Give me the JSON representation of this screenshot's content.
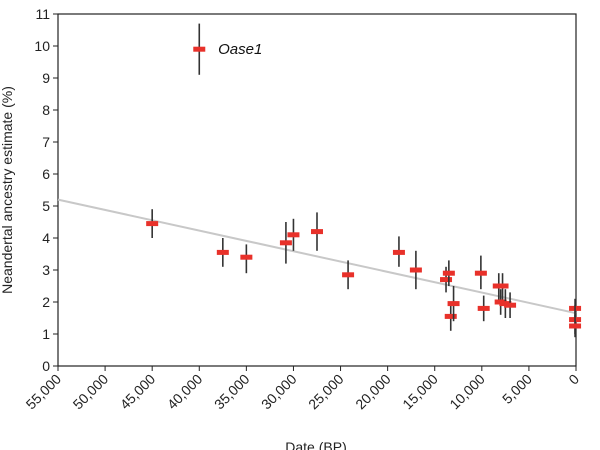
{
  "chart_data": {
    "type": "scatter",
    "xlabel": "Date (BP)",
    "ylabel": "Neandertal ancestry estimate (%)",
    "xlim": [
      55000,
      0
    ],
    "ylim": [
      0,
      11
    ],
    "x_ticks": [
      "55,000",
      "50,000",
      "45,000",
      "40,000",
      "35,000",
      "30,000",
      "25,000",
      "20,000",
      "15,000",
      "10,000",
      "5,000",
      "0"
    ],
    "x_tick_values": [
      55000,
      50000,
      45000,
      40000,
      35000,
      30000,
      25000,
      20000,
      15000,
      10000,
      5000,
      0
    ],
    "y_ticks": [
      "0",
      "1",
      "2",
      "3",
      "4",
      "5",
      "6",
      "7",
      "8",
      "9",
      "10",
      "11"
    ],
    "y_tick_values": [
      0,
      1,
      2,
      3,
      4,
      5,
      6,
      7,
      8,
      9,
      10,
      11
    ],
    "grid": false,
    "trend_line": {
      "x": [
        55000,
        0
      ],
      "y": [
        5.2,
        1.65
      ]
    },
    "colors": {
      "marker": "#e8312a",
      "errorbar": "#333333",
      "trend": "#c8c8c8"
    },
    "annotations": [
      {
        "text": "Oase1",
        "x": 38000,
        "y": 9.9
      }
    ],
    "points": [
      {
        "x": 40000,
        "y": 9.9,
        "lo": 9.1,
        "hi": 10.7
      },
      {
        "x": 45000,
        "y": 4.45,
        "lo": 4.0,
        "hi": 4.9
      },
      {
        "x": 37500,
        "y": 3.55,
        "lo": 3.1,
        "hi": 4.0
      },
      {
        "x": 35000,
        "y": 3.4,
        "lo": 2.9,
        "hi": 3.8
      },
      {
        "x": 30800,
        "y": 3.85,
        "lo": 3.2,
        "hi": 4.5
      },
      {
        "x": 30000,
        "y": 4.1,
        "lo": 3.6,
        "hi": 4.6
      },
      {
        "x": 27500,
        "y": 4.2,
        "lo": 3.6,
        "hi": 4.8
      },
      {
        "x": 24200,
        "y": 2.85,
        "lo": 2.4,
        "hi": 3.3
      },
      {
        "x": 18800,
        "y": 3.55,
        "lo": 3.1,
        "hi": 4.05
      },
      {
        "x": 17000,
        "y": 3.0,
        "lo": 2.4,
        "hi": 3.6
      },
      {
        "x": 13800,
        "y": 2.7,
        "lo": 2.3,
        "hi": 3.1
      },
      {
        "x": 13500,
        "y": 2.9,
        "lo": 2.5,
        "hi": 3.3
      },
      {
        "x": 13300,
        "y": 1.55,
        "lo": 1.1,
        "hi": 2.0
      },
      {
        "x": 13000,
        "y": 1.95,
        "lo": 1.4,
        "hi": 2.5
      },
      {
        "x": 10100,
        "y": 2.9,
        "lo": 2.4,
        "hi": 3.45
      },
      {
        "x": 9800,
        "y": 1.8,
        "lo": 1.4,
        "hi": 2.2
      },
      {
        "x": 8200,
        "y": 2.5,
        "lo": 2.0,
        "hi": 2.9
      },
      {
        "x": 7800,
        "y": 2.5,
        "lo": 2.0,
        "hi": 2.9
      },
      {
        "x": 8000,
        "y": 2.0,
        "lo": 1.6,
        "hi": 2.4
      },
      {
        "x": 7500,
        "y": 1.95,
        "lo": 1.5,
        "hi": 2.4
      },
      {
        "x": 7000,
        "y": 1.9,
        "lo": 1.5,
        "hi": 2.3
      },
      {
        "x": 100,
        "y": 1.8,
        "lo": 1.4,
        "hi": 2.1
      },
      {
        "x": 100,
        "y": 1.45,
        "lo": 1.0,
        "hi": 1.9
      },
      {
        "x": 100,
        "y": 1.25,
        "lo": 0.9,
        "hi": 1.6
      }
    ]
  }
}
